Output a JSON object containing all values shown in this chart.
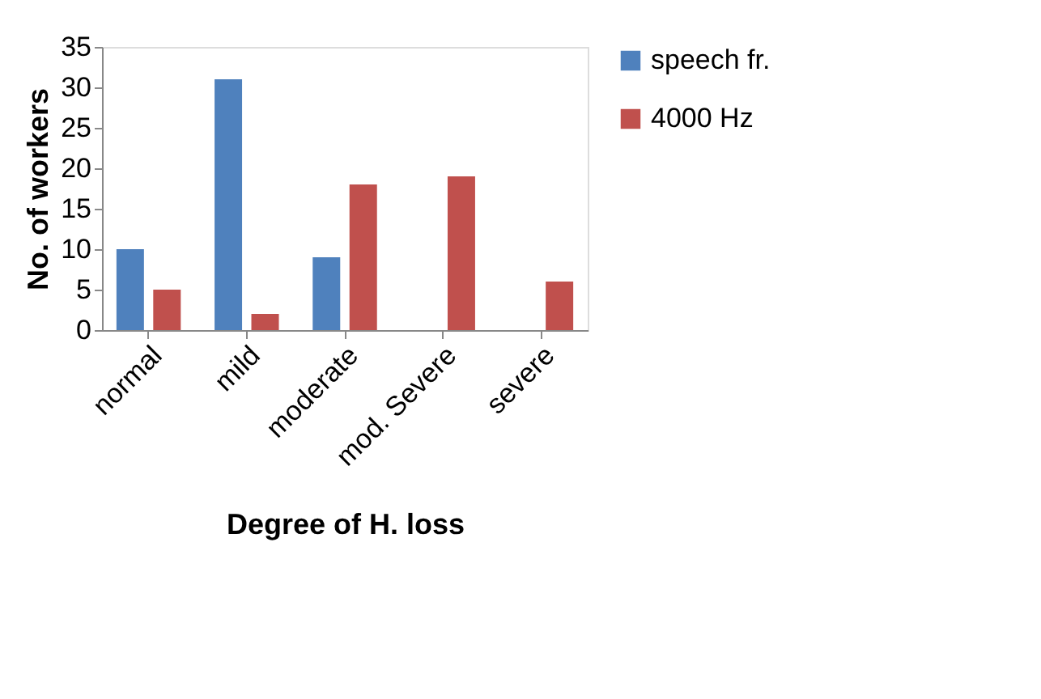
{
  "chart_data": {
    "type": "bar",
    "xlabel": "Degree of H. loss",
    "ylabel": "No. of workers",
    "categories": [
      "normal",
      "mild",
      "moderate",
      "mod. Severe",
      "severe"
    ],
    "series": [
      {
        "name": "speech fr.",
        "color": "#4f81bd",
        "values": [
          10,
          31,
          9,
          0,
          0
        ]
      },
      {
        "name": "4000 Hz",
        "color": "#c0504d",
        "values": [
          5,
          2,
          18,
          19,
          6
        ]
      }
    ],
    "ylim": [
      0,
      35
    ],
    "yticks": [
      0,
      5,
      10,
      15,
      20,
      25,
      30,
      35
    ],
    "grid": false,
    "legend": "right"
  }
}
